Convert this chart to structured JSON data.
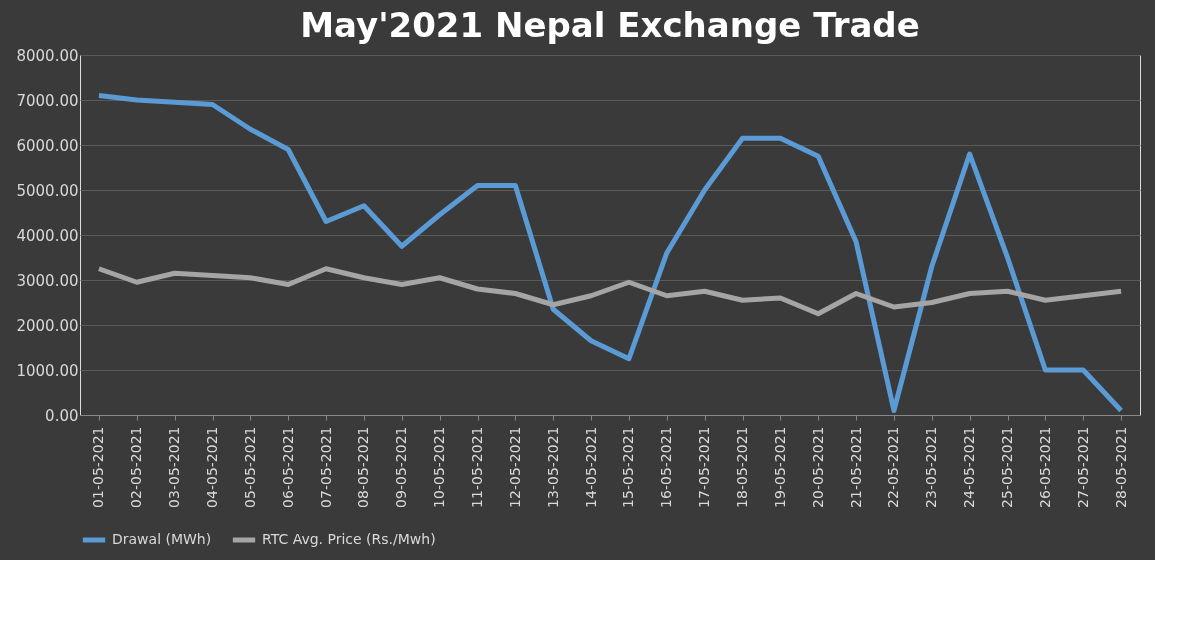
{
  "chart_data": {
    "type": "line",
    "title": "May'2021 Nepal Exchange Trade",
    "categories": [
      "01-05-2021",
      "02-05-2021",
      "03-05-2021",
      "04-05-2021",
      "05-05-2021",
      "06-05-2021",
      "07-05-2021",
      "08-05-2021",
      "09-05-2021",
      "10-05-2021",
      "11-05-2021",
      "12-05-2021",
      "13-05-2021",
      "14-05-2021",
      "15-05-2021",
      "16-05-2021",
      "17-05-2021",
      "18-05-2021",
      "19-05-2021",
      "20-05-2021",
      "21-05-2021",
      "22-05-2021",
      "23-05-2021",
      "24-05-2021",
      "25-05-2021",
      "26-05-2021",
      "27-05-2021",
      "28-05-2021"
    ],
    "series": [
      {
        "name": "Drawal (MWh)",
        "color": "#5b9bd5",
        "values": [
          7100,
          7000,
          6950,
          6900,
          6350,
          5900,
          4300,
          4650,
          3750,
          4450,
          5100,
          5100,
          2350,
          1650,
          1250,
          3600,
          5000,
          6150,
          6150,
          5750,
          3850,
          100,
          3300,
          5800,
          3500,
          1000,
          1000,
          100
        ]
      },
      {
        "name": "RTC Avg. Price (Rs./Mwh)",
        "color": "#a5a5a5",
        "values": [
          3250,
          2950,
          3150,
          3100,
          3050,
          2900,
          3250,
          3050,
          2900,
          3050,
          2800,
          2700,
          2450,
          2650,
          2950,
          2650,
          2750,
          2550,
          2600,
          2250,
          2700,
          2400,
          2500,
          2700,
          2750,
          2550,
          2650,
          2750
        ]
      }
    ],
    "ylim": [
      0,
      8000
    ],
    "yticks": [
      {
        "value": 0,
        "label": "0.00"
      },
      {
        "value": 1000,
        "label": "1000.00"
      },
      {
        "value": 2000,
        "label": "2000.00"
      },
      {
        "value": 3000,
        "label": "3000.00"
      },
      {
        "value": 4000,
        "label": "4000.00"
      },
      {
        "value": 5000,
        "label": "5000.00"
      },
      {
        "value": 6000,
        "label": "6000.00"
      },
      {
        "value": 7000,
        "label": "7000.00"
      },
      {
        "value": 8000,
        "label": "8000.00"
      }
    ],
    "grid": "y",
    "legend": "bottom",
    "marker": "none",
    "line_style": "solid"
  }
}
